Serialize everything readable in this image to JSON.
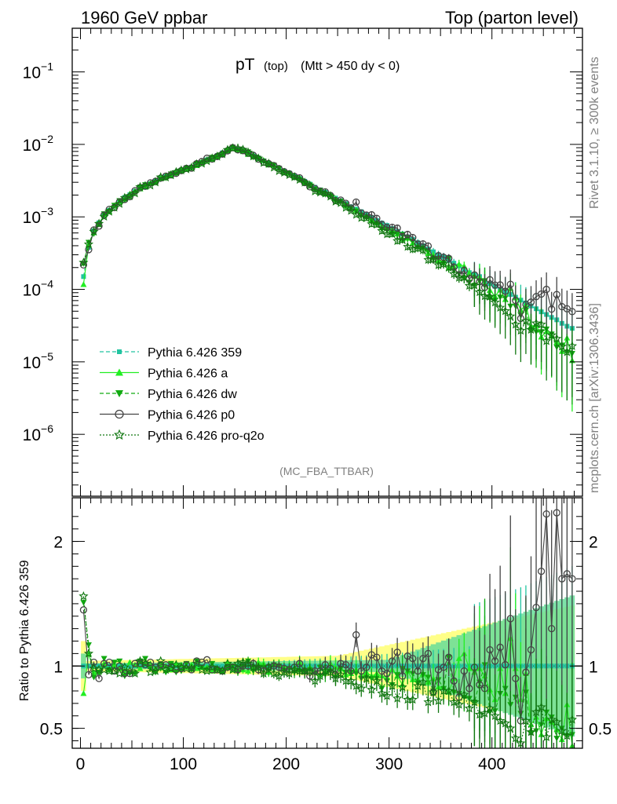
{
  "header": {
    "left": "1960 GeV ppbar",
    "right": "Top (parton level)"
  },
  "title": {
    "main": "pT",
    "sub1": "(top)",
    "sub2": "(Mtt > 450 dy < 0)"
  },
  "side_labels": {
    "rivet": "Rivet 3.1.10, ≥ 300k events",
    "site": "mcplots.cern.ch [arXiv:1306.3436]"
  },
  "analysis_tag": "(MC_FBA_TTBAR)",
  "ratio_axis_label": "Ratio to Pythia 6.426 359",
  "colors": {
    "yellow_band": "#ffff88",
    "green_band": "#66dd99",
    "s359": "#22c4a0",
    "a": "#22ee22",
    "dw": "#11aa11",
    "p0": "#444444",
    "pro": "#117711"
  },
  "chart_data": {
    "type": "line",
    "x_range": [
      -8,
      488
    ],
    "x_ticks": [
      0,
      100,
      200,
      300,
      400
    ],
    "x_tick_labels": [
      "0",
      "100",
      "200",
      "300",
      "400"
    ],
    "y_scale": "log",
    "y_range": [
      1.4e-07,
      0.4
    ],
    "y_tick_exponents": [
      -1,
      -2,
      -3,
      -4,
      -5,
      -6
    ],
    "ratio_range": [
      0.34,
      2.35
    ],
    "ratio_ticks": [
      0.5,
      1,
      2
    ],
    "ratio_tick_labels": [
      "0.5",
      "1",
      "2"
    ],
    "series": [
      {
        "key": "s359",
        "name": "Pythia 6.426 359",
        "style": "dashed",
        "marker": "square"
      },
      {
        "key": "a",
        "name": "Pythia 6.426 a",
        "style": "solid",
        "marker": "triangle-up"
      },
      {
        "key": "dw",
        "name": "Pythia 6.426 dw",
        "style": "dashed",
        "marker": "triangle-down"
      },
      {
        "key": "p0",
        "name": "Pythia 6.426 p0",
        "style": "solid",
        "marker": "circle-open"
      },
      {
        "key": "pro",
        "name": "Pythia 6.426 pro-q2o",
        "style": "dotted",
        "marker": "star-open"
      }
    ],
    "x": [
      3,
      8,
      13,
      18,
      23,
      28,
      33,
      38,
      43,
      48,
      53,
      58,
      63,
      68,
      73,
      78,
      83,
      88,
      93,
      98,
      103,
      108,
      113,
      118,
      123,
      128,
      133,
      138,
      143,
      148,
      153,
      158,
      163,
      168,
      173,
      178,
      183,
      188,
      193,
      198,
      203,
      208,
      213,
      218,
      223,
      228,
      233,
      238,
      243,
      248,
      253,
      258,
      263,
      268,
      273,
      278,
      283,
      288,
      293,
      298,
      303,
      308,
      313,
      318,
      323,
      328,
      333,
      338,
      343,
      348,
      353,
      358,
      363,
      368,
      373,
      378,
      383,
      388,
      393,
      398,
      403,
      408,
      413,
      418,
      423,
      428,
      433,
      438,
      443,
      448,
      453,
      458,
      463,
      468,
      473,
      478
    ],
    "s359_values": [
      0.00015,
      0.00038,
      0.00064,
      0.00083,
      0.00104,
      0.00123,
      0.0014,
      0.00161,
      0.00185,
      0.00202,
      0.00225,
      0.00248,
      0.00262,
      0.00286,
      0.00313,
      0.00339,
      0.00361,
      0.00383,
      0.00412,
      0.00443,
      0.00463,
      0.00486,
      0.00521,
      0.00562,
      0.00613,
      0.00648,
      0.00702,
      0.00765,
      0.00824,
      0.00911,
      0.00868,
      0.00821,
      0.00758,
      0.00693,
      0.00647,
      0.00594,
      0.00548,
      0.0051,
      0.00467,
      0.00429,
      0.00404,
      0.00366,
      0.00339,
      0.0031,
      0.00283,
      0.00256,
      0.00236,
      0.00219,
      0.00201,
      0.00181,
      0.00167,
      0.00152,
      0.00138,
      0.00128,
      0.00118,
      0.00107,
      0.00098,
      0.00089,
      0.00082,
      0.00076,
      0.00069,
      0.00063,
      0.00058,
      0.00053,
      0.00049,
      0.00044,
      0.0004,
      0.00036,
      0.00033,
      0.0003,
      0.00028,
      0.00025,
      0.00023,
      0.00021,
      0.00019,
      0.00017,
      0.00016,
      0.00015,
      0.00013,
      0.00012,
      0.00011,
      0.0001,
      9.3e-05,
      8.5e-05,
      7.8e-05,
      7.1e-05,
      6.5e-05,
      5.9e-05,
      5.4e-05,
      4.9e-05,
      4.5e-05,
      4.1e-05,
      3.8e-05,
      3.4e-05,
      3.1e-05,
      2.9e-05
    ],
    "ratios": {
      "s359": [
        1.0,
        1.0,
        1.0,
        1.0,
        1.0,
        1.0,
        1.0,
        1.0,
        1.0,
        1.0,
        1.0,
        1.0,
        1.0,
        1.0,
        1.0,
        1.0,
        1.0,
        1.0,
        1.0,
        1.0,
        1.0,
        1.0,
        1.0,
        1.0,
        1.0,
        1.0,
        1.0,
        1.0,
        1.0,
        1.0,
        1.0,
        1.0,
        1.0,
        1.0,
        1.0,
        1.0,
        1.0,
        1.0,
        1.0,
        1.0,
        1.0,
        1.0,
        1.0,
        1.0,
        1.0,
        1.0,
        1.0,
        1.0,
        1.0,
        1.0,
        1.0,
        1.0,
        1.0,
        1.0,
        1.0,
        1.0,
        1.0,
        1.0,
        1.0,
        1.0,
        1.0,
        1.0,
        1.0,
        1.0,
        1.0,
        1.0,
        1.0,
        1.0,
        1.0,
        1.0,
        1.0,
        1.0,
        1.0,
        1.0,
        1.0,
        1.0,
        1.0,
        1.0,
        1.0,
        1.0,
        1.0,
        1.0,
        1.0,
        1.0,
        1.0,
        1.0,
        1.0,
        1.0,
        1.0,
        1.0,
        1.0,
        1.0,
        1.0,
        1.0,
        1.0,
        1.0
      ],
      "a": [
        0.78,
        1.1,
        0.95,
        0.95,
        1.02,
        0.97,
        1.01,
        0.98,
        0.96,
        1.03,
        1.01,
        0.98,
        1.03,
        1.02,
        0.98,
        1.01,
        1.0,
        0.97,
        1.02,
        1.01,
        0.99,
        1.01,
        0.98,
        0.99,
        0.99,
        0.96,
        0.98,
        0.96,
        1.03,
        0.97,
        0.98,
        0.97,
        0.96,
        0.99,
        1.03,
        1.02,
        0.95,
        1.01,
        1.01,
        0.99,
        0.99,
        0.97,
        1.03,
        0.97,
        0.99,
        0.95,
        0.93,
        0.96,
        1.02,
        0.99,
        0.98,
        0.93,
        0.94,
        0.97,
        0.93,
        0.95,
        0.92,
        0.94,
        0.92,
        0.91,
        0.97,
        0.92,
        0.85,
        0.96,
        0.89,
        0.89,
        0.94,
        0.87,
        0.9,
        0.83,
        0.83,
        0.79,
        0.9,
        1.06,
        1.1,
        0.98,
        0.95,
        0.98,
        0.92,
        0.81,
        0.73,
        0.98,
        0.78,
        1.22,
        0.98,
        0.73,
        0.94,
        0.53,
        0.59,
        0.45,
        0.58,
        0.55,
        0.49,
        0.41,
        0.69,
        0.36
      ],
      "dw": [
        1.51,
        1.17,
        0.91,
        0.95,
        1.06,
        0.97,
        1.03,
        1.04,
        0.92,
        0.94,
        0.94,
        1.04,
        1.06,
        0.98,
        0.95,
        0.98,
        0.95,
        1.02,
        0.95,
        0.96,
        1.02,
        0.97,
        1.04,
        0.99,
        0.97,
        1.02,
        0.97,
        0.95,
        0.98,
        1.0,
        0.95,
        0.99,
        1.04,
        0.96,
        0.99,
        0.99,
        0.96,
        1.01,
        1.0,
        0.96,
        0.98,
        0.95,
        0.96,
        0.95,
        0.97,
        0.94,
        0.99,
        0.93,
        0.96,
        0.91,
        0.98,
        0.95,
        0.95,
        0.94,
        0.9,
        0.91,
        0.9,
        0.9,
        0.82,
        0.88,
        0.85,
        0.93,
        0.98,
        0.96,
        0.94,
        0.86,
        0.93,
        0.91,
        0.8,
        0.89,
        0.82,
        1.07,
        0.79,
        0.78,
        0.75,
        0.74,
        0.71,
        0.87,
        1.01,
        0.63,
        0.64,
        0.78,
        0.82,
        0.69,
        0.75,
        0.62,
        0.79,
        0.46,
        0.48,
        0.53,
        0.63,
        0.59,
        0.42,
        0.5,
        0.44,
        0.45
      ],
      "p0": [
        1.45,
        0.93,
        1.03,
        0.9,
        1.02,
        1.03,
        0.96,
        1.0,
        0.94,
        0.94,
        1.02,
        1.02,
        1.01,
        1.03,
        0.99,
        1.01,
        1.01,
        0.99,
        0.97,
        0.98,
        1.01,
        0.97,
        1.04,
        1.03,
        1.05,
        0.97,
        0.97,
        0.96,
        0.99,
        0.99,
        0.97,
        1.0,
        1.0,
        1.02,
        0.97,
        0.96,
        0.99,
        1.0,
        0.99,
        0.98,
        0.97,
        0.99,
        1.02,
        0.96,
        0.92,
        0.96,
        0.96,
        1.01,
        0.98,
        0.93,
        1.02,
        1.01,
        0.96,
        1.25,
        0.96,
        0.99,
        1.09,
        1.07,
        0.96,
        0.94,
        1.04,
        1.11,
        0.92,
        1.08,
        1.06,
        0.96,
        1.06,
        1.1,
        0.79,
        0.97,
        0.99,
        1.07,
        0.88,
        0.75,
        0.96,
        0.82,
        0.99,
        0.85,
        0.82,
        1.13,
        1.04,
        1.15,
        1.01,
        1.38,
        0.9,
        0.56,
        0.95,
        1.13,
        1.47,
        1.76,
        2.22,
        1.3,
        2.23,
        1.7,
        1.74,
        1.7
      ],
      "pro": [
        1.56,
        1.1,
        0.98,
        0.97,
        0.97,
        0.96,
        0.96,
        0.94,
        0.99,
        0.96,
        0.94,
        1.04,
        1.02,
        0.95,
        0.96,
        1.04,
        0.97,
        0.98,
        1.01,
        0.99,
        0.98,
        0.98,
        1.02,
        0.97,
        0.96,
        0.99,
        0.97,
        0.96,
        1.02,
        0.97,
        1.02,
        1.03,
        1.02,
        0.99,
        0.99,
        0.94,
        0.99,
        0.94,
        0.92,
        0.95,
        0.94,
        0.97,
        0.96,
        0.96,
        0.96,
        0.88,
        0.92,
        0.96,
        0.95,
        0.9,
        0.93,
        0.88,
        0.88,
        0.84,
        0.82,
        0.9,
        0.81,
        0.88,
        0.78,
        0.76,
        0.84,
        0.74,
        0.83,
        0.73,
        0.73,
        0.84,
        0.87,
        0.71,
        0.79,
        0.72,
        0.8,
        0.8,
        0.71,
        0.69,
        0.77,
        0.66,
        0.71,
        0.61,
        0.62,
        0.66,
        0.6,
        0.56,
        0.54,
        0.5,
        0.42,
        0.38,
        0.56,
        0.47,
        0.63,
        0.67,
        0.43,
        0.57,
        0.55,
        0.48,
        0.44,
        0.57
      ]
    }
  }
}
